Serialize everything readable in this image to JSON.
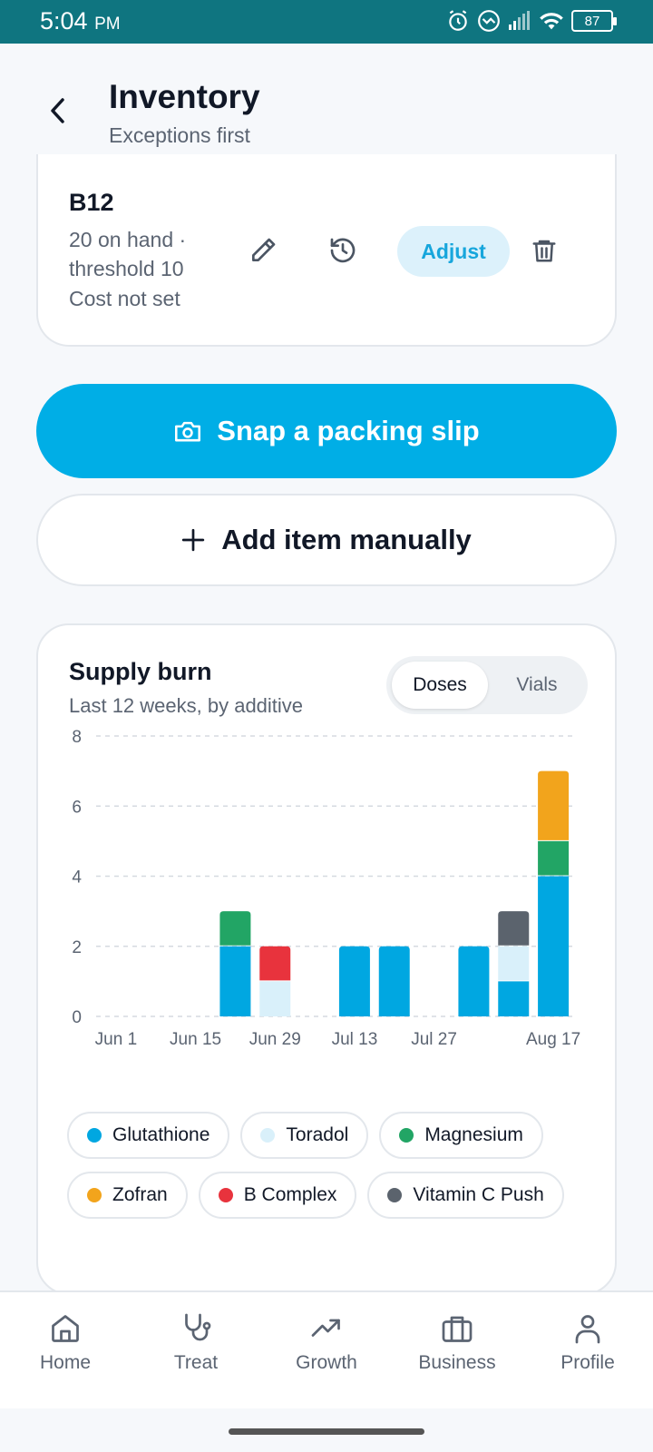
{
  "status": {
    "time": "5:04",
    "ampm": "PM",
    "battery": "87"
  },
  "header": {
    "title": "Inventory",
    "subtitle": "Exceptions first"
  },
  "item": {
    "name": "B12",
    "meta": "20 on hand · threshold 10",
    "cost": "Cost not set",
    "adjust_label": "Adjust"
  },
  "actions": {
    "snap_label": "Snap a packing slip",
    "add_label": "Add item manually"
  },
  "chart": {
    "title": "Supply burn",
    "subtitle": "Last 12 weeks, by additive",
    "toggle": {
      "options": [
        "Doses",
        "Vials"
      ],
      "selected": "Doses"
    }
  },
  "chart_data": {
    "type": "bar",
    "stacked": true,
    "categories": [
      "Jun 1",
      "Jun 8",
      "Jun 15",
      "Jun 22",
      "Jun 29",
      "Jul 6",
      "Jul 13",
      "Jul 20",
      "Jul 27",
      "Aug 3",
      "Aug 10",
      "Aug 17"
    ],
    "x_tick_labels": [
      "Jun 1",
      "Jun 15",
      "Jun 29",
      "Jul 13",
      "Jul 27",
      "Aug 17"
    ],
    "y_ticks": [
      0,
      2,
      4,
      6,
      8
    ],
    "ylim": [
      0,
      8
    ],
    "grid": true,
    "series": [
      {
        "name": "Glutathione",
        "color": "#00a7e1",
        "values": [
          0,
          0,
          0,
          2,
          0,
          0,
          2,
          2,
          0,
          2,
          1,
          4
        ]
      },
      {
        "name": "Toradol",
        "color": "#d9f0fa",
        "values": [
          0,
          0,
          0,
          0,
          1,
          0,
          0,
          0,
          0,
          0,
          1,
          0
        ]
      },
      {
        "name": "Magnesium",
        "color": "#22a565",
        "values": [
          0,
          0,
          0,
          1,
          0,
          0,
          0,
          0,
          0,
          0,
          0,
          1
        ]
      },
      {
        "name": "Zofran",
        "color": "#f2a41c",
        "values": [
          0,
          0,
          0,
          0,
          0,
          0,
          0,
          0,
          0,
          0,
          0,
          2
        ]
      },
      {
        "name": "B Complex",
        "color": "#e8333d",
        "values": [
          0,
          0,
          0,
          0,
          1,
          0,
          0,
          0,
          0,
          0,
          0,
          0
        ]
      },
      {
        "name": "Vitamin C Push",
        "color": "#5b636d",
        "values": [
          0,
          0,
          0,
          0,
          0,
          0,
          0,
          0,
          0,
          0,
          1,
          0
        ]
      }
    ]
  },
  "tabs": [
    {
      "label": "Home",
      "icon": "home-icon"
    },
    {
      "label": "Treat",
      "icon": "stethoscope-icon"
    },
    {
      "label": "Growth",
      "icon": "trending-up-icon"
    },
    {
      "label": "Business",
      "icon": "briefcase-icon"
    },
    {
      "label": "Profile",
      "icon": "user-icon"
    }
  ]
}
